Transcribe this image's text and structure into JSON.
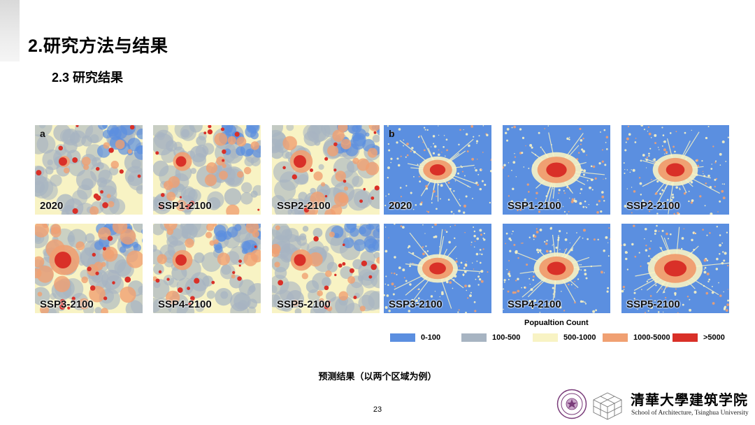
{
  "slide": {
    "title": "2.研究方法与结果",
    "subtitle": "2.3 研究结果",
    "caption": "预测结果（以两个区域为例）",
    "page_number": "23"
  },
  "figure_a": {
    "label": "a",
    "panels": [
      "2020",
      "SSP1-2100",
      "SSP2-2100",
      "SSP3-2100",
      "SSP4-2100",
      "SSP5-2100"
    ]
  },
  "figure_b": {
    "label": "b",
    "panels": [
      "2020",
      "SSP1-2100",
      "SSP2-2100",
      "SSP3-2100",
      "SSP4-2100",
      "SSP5-2100"
    ]
  },
  "legend": {
    "title": "Popualtion Count",
    "items": [
      {
        "label": "0-100",
        "color": "#5b8fe0"
      },
      {
        "label": "100-500",
        "color": "#a7b4c2"
      },
      {
        "label": "500-1000",
        "color": "#f8f3c4"
      },
      {
        "label": "1000-5000",
        "color": "#f0a072"
      },
      {
        "label": ">5000",
        "color": "#d93028"
      }
    ]
  },
  "logo": {
    "school_cn": "清華大學建筑学院",
    "school_en": "School of Architecture, Tsinghua University"
  }
}
